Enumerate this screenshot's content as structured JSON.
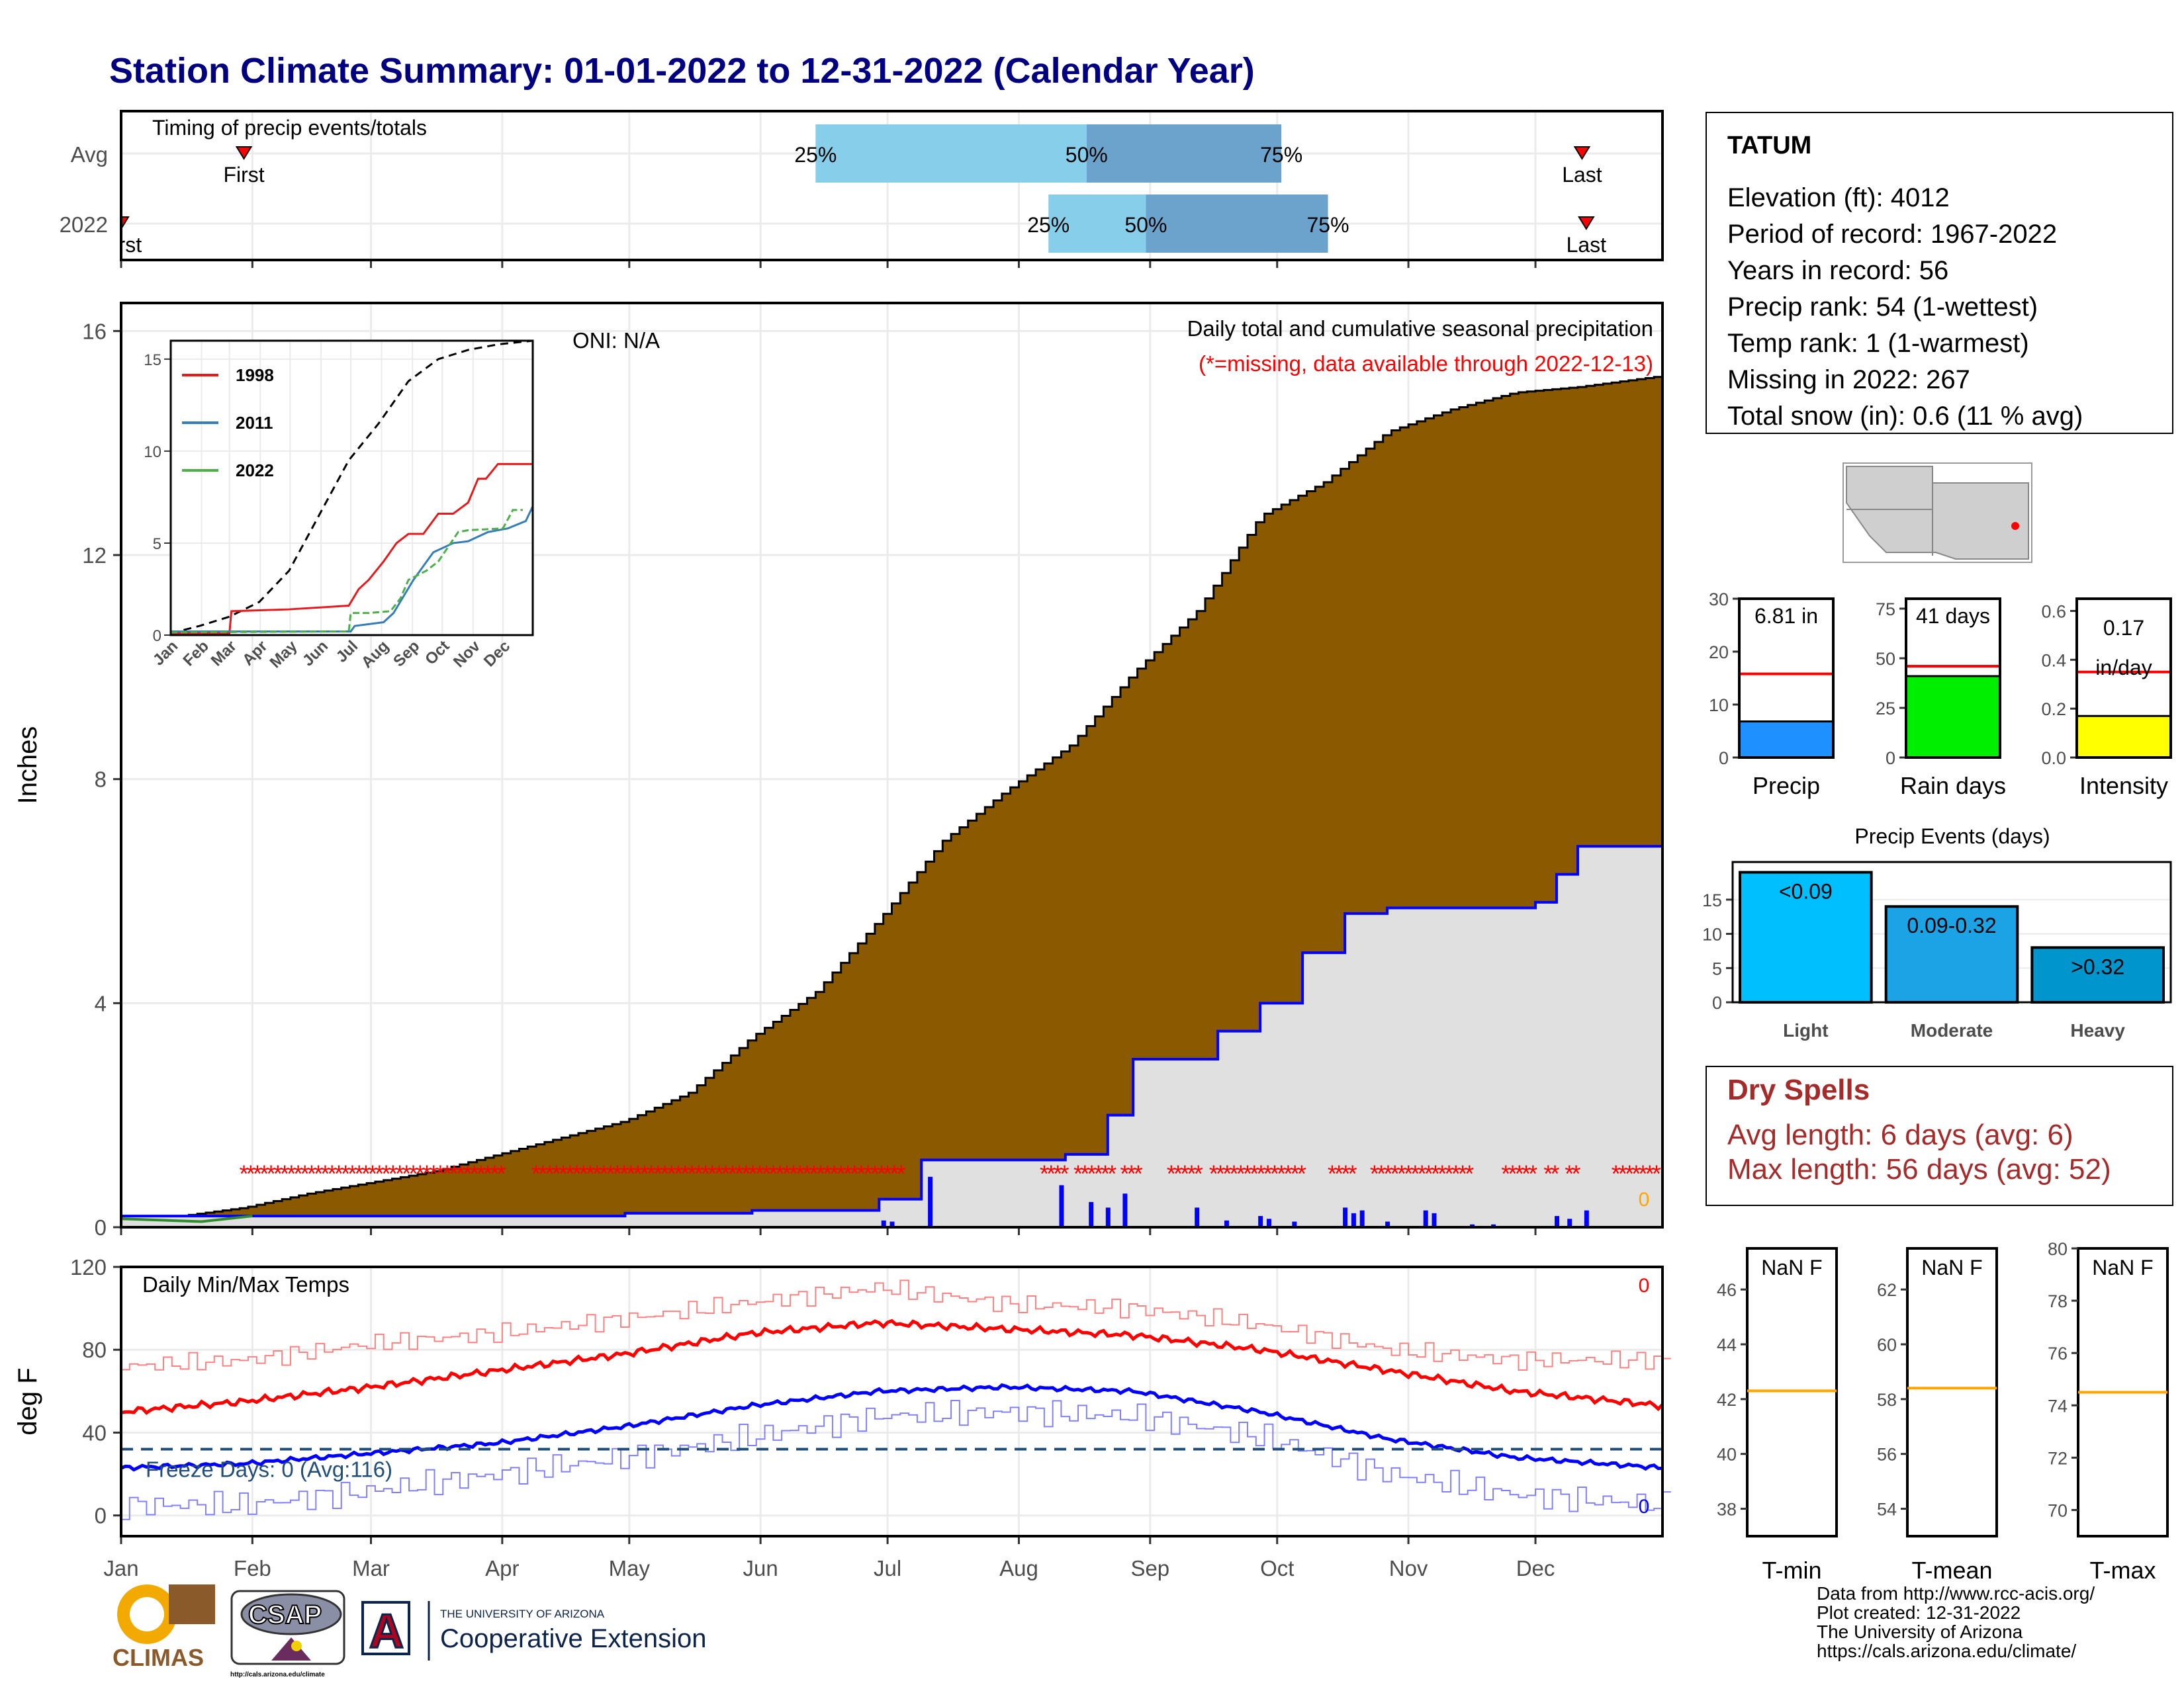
{
  "title": "Station Climate Summary: 01-01-2022 to 12-31-2022 (Calendar Year)",
  "colors": {
    "title": "#000080",
    "precip_fill": "#8B5A00",
    "normal_fill": "#E0E0E0",
    "observed": "#0000FF",
    "missing": "#FF0000",
    "max_temp": "#FF0000",
    "min_temp": "#0000FF",
    "freeze_line": "#1F4E79",
    "light_blue": "#87CEEB",
    "mid_blue": "#6BA3CC",
    "dry_spell": "#A52A2A"
  },
  "months": [
    "Jan",
    "Feb",
    "Mar",
    "Apr",
    "May",
    "Jun",
    "Jul",
    "Aug",
    "Sep",
    "Oct",
    "Nov",
    "Dec"
  ],
  "timing": {
    "label": "Timing of precip events/totals",
    "rows": [
      {
        "name": "Avg",
        "first_label": "First",
        "first_day": 30,
        "p25": 165,
        "p50": 229,
        "p75": 275,
        "p25_label": "25%",
        "p50_label": "50%",
        "p75_label": "75%",
        "last_label": "Last",
        "last_day": 346
      },
      {
        "name": "2022",
        "first_label": "First",
        "first_day": 1,
        "p25": 220,
        "p50": 243,
        "p75": 286,
        "p25_label": "25%",
        "p50_label": "50%",
        "p75_label": "75%",
        "last_label": "Last",
        "last_day": 347
      }
    ]
  },
  "precip_panel": {
    "ylabel": "Inches",
    "yticks": [
      0,
      4,
      8,
      12,
      16
    ],
    "title": "Daily total and cumulative seasonal precipitation",
    "subtitle": "(*=missing, data available through 2022-12-13)",
    "oni": "ONI: N/A",
    "zero_label": "0"
  },
  "inset": {
    "yticks": [
      0,
      5,
      10,
      15
    ],
    "months": [
      "Jan",
      "Feb",
      "Mar",
      "Apr",
      "May",
      "Jun",
      "Jul",
      "Aug",
      "Sep",
      "Oct",
      "Nov",
      "Dec"
    ],
    "legend": [
      {
        "name": "1998",
        "color": "#E41A1C"
      },
      {
        "name": "2011",
        "color": "#377EB8"
      },
      {
        "name": "2022",
        "color": "#4DAF4A"
      }
    ]
  },
  "temp_panel": {
    "ylabel": "deg F",
    "title": "Daily Min/Max Temps",
    "yticks": [
      0,
      40,
      80,
      120
    ],
    "freeze_label": "Freeze Days: 0 (Avg:116)",
    "max_missing": "0",
    "min_missing": "0"
  },
  "station": {
    "name": "TATUM",
    "lines": [
      "Elevation (ft): 4012",
      "Period of record: 1967-2022",
      "Years in record: 56",
      "Precip rank: 54 (1-wettest)",
      "Temp rank: 1 (1-warmest)",
      "Missing in 2022: 267",
      "Total snow (in): 0.6 (11 % avg)"
    ]
  },
  "mini_bars": [
    {
      "label": "Precip",
      "value_label": "6.81 in",
      "value": 6.81,
      "avg": 15.8,
      "max": 30,
      "ticks": [
        0,
        10,
        20,
        30
      ],
      "color": "#1E90FF"
    },
    {
      "label": "Rain days",
      "value_label": "41 days",
      "value": 41,
      "avg": 46,
      "max": 80,
      "ticks": [
        0,
        25,
        50,
        75
      ],
      "color": "#00EE00"
    },
    {
      "label": "Intensity",
      "value_label": "0.17 in/day",
      "value_label_1": "0.17",
      "value_label_2": "in/day",
      "value": 0.17,
      "avg": 0.35,
      "max": 0.65,
      "ticks": [
        "0.0",
        "0.2",
        "0.4",
        "0.6"
      ],
      "color": "#FFFF00"
    }
  ],
  "events": {
    "title": "Precip Events (days)",
    "yticks": [
      0,
      5,
      10,
      15
    ],
    "bars": [
      {
        "category": "Light",
        "label": "<0.09",
        "value": 19,
        "color": "#00BFFF"
      },
      {
        "category": "Moderate",
        "label": "0.09-0.32",
        "value": 14,
        "color": "#1CA3E6"
      },
      {
        "category": "Heavy",
        "label": ">0.32",
        "value": 8,
        "color": "#0095CC"
      }
    ]
  },
  "dry_spells": {
    "title": "Dry Spells",
    "avg_length": "Avg length: 6 days (avg: 6)",
    "max_length": "Max length: 56 days (avg: 52)"
  },
  "temp_boxes": [
    {
      "label": "T-min",
      "value_label": "NaN F",
      "ticks": [
        38,
        40,
        42,
        44,
        46
      ],
      "min": 37,
      "max": 47.5,
      "avg": 42.3
    },
    {
      "label": "T-mean",
      "value_label": "NaN F",
      "ticks": [
        54,
        56,
        58,
        60,
        62
      ],
      "min": 53,
      "max": 63.5,
      "avg": 58.4
    },
    {
      "label": "T-max",
      "value_label": "NaN F",
      "ticks": [
        70,
        72,
        74,
        76,
        78,
        80
      ],
      "min": 69,
      "max": 80,
      "avg": 74.5
    }
  ],
  "footer": {
    "lines": [
      "Data from http://www.rcc-acis.org/",
      "Plot created: 12-31-2022",
      "The University of Arizona",
      "https://cals.arizona.edu/climate/"
    ],
    "climas": "CLIMAS",
    "csap": "CSAP",
    "csap_url": "http://cals.arizona.edu/climate",
    "ua_line1": "THE UNIVERSITY OF ARIZONA",
    "ua_line2": "Cooperative Extension"
  },
  "chart_data": [
    {
      "type": "area",
      "title": "Daily total and cumulative seasonal precipitation",
      "ylabel": "Inches",
      "ylim": [
        0,
        16.5
      ],
      "x_unit": "day of year",
      "series": [
        {
          "name": "",
          "x": [
            1,
            15,
            30,
            45,
            60,
            75,
            90,
            105,
            120,
            135,
            150,
            165,
            180,
            195,
            210,
            225,
            240,
            255,
            270,
            285,
            300,
            315,
            330,
            345,
            365
          ],
          "values": [
            0.15,
            0.2,
            0.35,
            0.6,
            0.8,
            1.0,
            1.3,
            1.6,
            1.9,
            2.4,
            3.4,
            4.2,
            5.5,
            6.9,
            7.8,
            8.6,
            9.9,
            11.0,
            12.7,
            13.3,
            14.2,
            14.6,
            14.9,
            15.0,
            15.2
          ]
        },
        {
          "name": "",
          "x": [
            1,
            40,
            60,
            90,
            120,
            150,
            180,
            190,
            200,
            224,
            234,
            240,
            260,
            270,
            280,
            290,
            300,
            335,
            340,
            345,
            365
          ],
          "values": [
            0.2,
            0.2,
            0.2,
            0.2,
            0.25,
            0.3,
            0.5,
            1.2,
            1.2,
            1.3,
            2.0,
            3.0,
            3.5,
            4.0,
            4.9,
            5.6,
            5.7,
            5.8,
            6.3,
            6.8,
            6.8
          ]
        }
      ]
    },
    {
      "type": "line",
      "title": "Daily Min/Max Temps",
      "ylabel": "deg F",
      "ylim": [
        -10,
        120
      ],
      "x_unit": "day of year",
      "series": [
        {
          "name": "",
          "x": [
            1,
            30,
            60,
            90,
            120,
            150,
            180,
            210,
            240,
            270,
            300,
            330,
            365
          ],
          "values": [
            50,
            55,
            62,
            70,
            78,
            88,
            93,
            90,
            87,
            80,
            70,
            60,
            53
          ]
        },
        {
          "name": "",
          "x": [
            1,
            30,
            60,
            90,
            120,
            150,
            180,
            210,
            240,
            270,
            300,
            330,
            365
          ],
          "values": [
            23,
            25,
            30,
            35,
            43,
            53,
            60,
            62,
            60,
            50,
            37,
            28,
            23
          ]
        },
        {
          "name": "",
          "x": [
            1,
            30,
            60,
            90,
            120,
            150,
            180,
            210,
            240,
            270,
            300,
            330,
            365
          ],
          "values": [
            72,
            75,
            83,
            88,
            95,
            103,
            110,
            102,
            100,
            92,
            80,
            75,
            75
          ]
        },
        {
          "name": "",
          "x": [
            1,
            30,
            60,
            90,
            120,
            150,
            180,
            210,
            240,
            270,
            300,
            330,
            365
          ],
          "values": [
            5,
            5,
            12,
            20,
            28,
            38,
            48,
            50,
            48,
            38,
            20,
            10,
            5
          ]
        }
      ]
    },
    {
      "type": "bar",
      "title": "Precip Events (days)",
      "categories": [
        "Light",
        "Moderate",
        "Heavy"
      ],
      "values": [
        19,
        14,
        8
      ]
    },
    {
      "type": "bar",
      "categories": [
        "Precip",
        "Rain days",
        "Intensity"
      ],
      "values": [
        6.81,
        41,
        0.17
      ]
    }
  ]
}
